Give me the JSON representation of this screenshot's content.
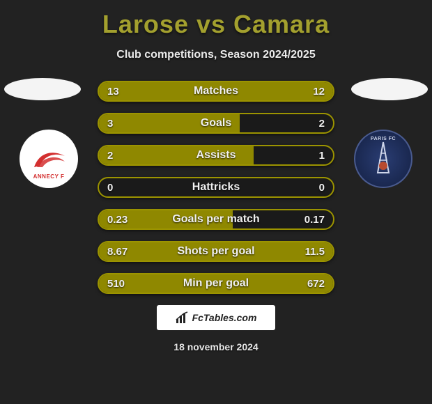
{
  "title": "Larose vs Camara",
  "subtitle": "Club competitions, Season 2024/2025",
  "date": "18 november 2024",
  "footer": "FcTables.com",
  "teams": {
    "left": {
      "name": "ANNECY F",
      "crest_bg": "#ffffff",
      "accent": "#d32f2f"
    },
    "right": {
      "name": "PARIS FC",
      "crest_bg": "#1f2f5e",
      "accent": "#ffffff"
    }
  },
  "colors": {
    "page_bg": "#222222",
    "title": "#a3a02e",
    "bar_border": "#9c9400",
    "bar_fill": "#8f8800",
    "bar_track": "#1a1a1a",
    "text": "#f0f0f0"
  },
  "rows": [
    {
      "label": "Matches",
      "left": "13",
      "right": "12",
      "left_pct": 52,
      "right_pct": 48
    },
    {
      "label": "Goals",
      "left": "3",
      "right": "2",
      "left_pct": 60,
      "right_pct": 0
    },
    {
      "label": "Assists",
      "left": "2",
      "right": "1",
      "left_pct": 66,
      "right_pct": 0
    },
    {
      "label": "Hattricks",
      "left": "0",
      "right": "0",
      "left_pct": 0,
      "right_pct": 0
    },
    {
      "label": "Goals per match",
      "left": "0.23",
      "right": "0.17",
      "left_pct": 57,
      "right_pct": 0
    },
    {
      "label": "Shots per goal",
      "left": "8.67",
      "right": "11.5",
      "left_pct": 43,
      "right_pct": 57
    },
    {
      "label": "Min per goal",
      "left": "510",
      "right": "672",
      "left_pct": 43,
      "right_pct": 57
    }
  ]
}
